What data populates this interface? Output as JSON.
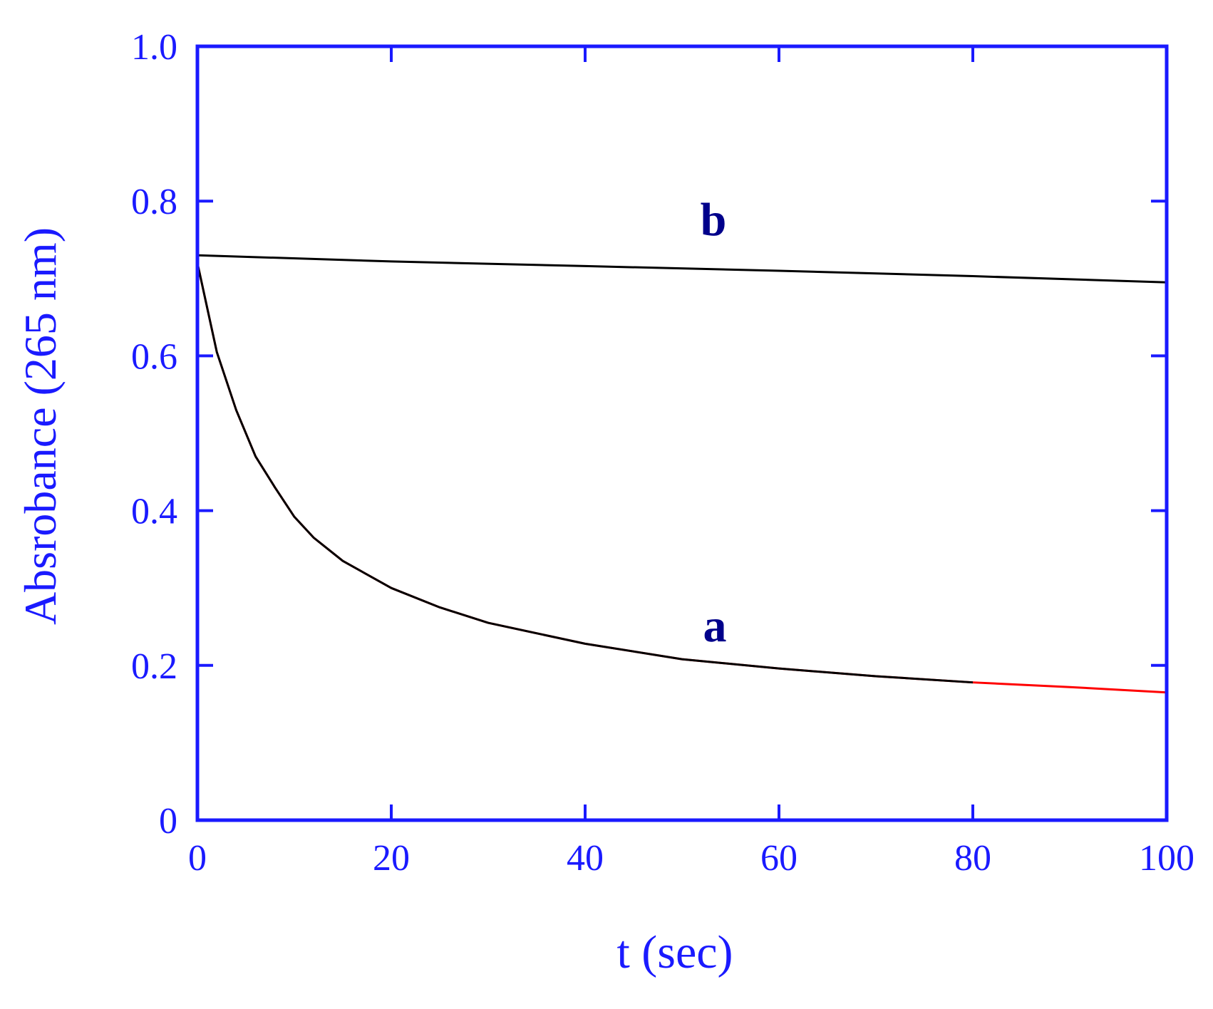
{
  "chart_data": {
    "type": "line",
    "x_label": "t (sec)",
    "y_label": "Absrobance (265 nm)",
    "xlim": [
      0,
      100
    ],
    "xticks": [
      0,
      20,
      40,
      60,
      80,
      100
    ],
    "ylim": [
      0,
      1
    ],
    "yticks": [
      0,
      0.2,
      0.4,
      0.6,
      0.8,
      {
        "value": 1,
        "label": "1.0"
      }
    ],
    "axis_color": "#1a1aff",
    "series": [
      {
        "color": "#ff0000",
        "x": [
          0,
          2,
          4,
          6,
          8,
          10,
          12,
          15,
          20,
          25,
          30,
          40,
          50,
          60,
          70,
          80,
          90,
          100
        ],
        "values": [
          0.72,
          0.605,
          0.53,
          0.47,
          0.43,
          0.392,
          0.365,
          0.335,
          0.3,
          0.275,
          0.255,
          0.228,
          0.208,
          0.196,
          0.186,
          0.178,
          0.172,
          0.165
        ]
      },
      {
        "name": "a",
        "color": "#000000",
        "x": [
          0,
          2,
          4,
          6,
          8,
          10,
          12,
          15,
          20,
          25,
          30,
          40,
          50,
          60,
          70,
          80
        ],
        "values": [
          0.72,
          0.605,
          0.53,
          0.47,
          0.43,
          0.392,
          0.365,
          0.335,
          0.3,
          0.275,
          0.255,
          0.228,
          0.208,
          0.196,
          0.186,
          0.178
        ]
      },
      {
        "name": "b",
        "color": "#000000",
        "x": [
          0,
          20,
          40,
          60,
          80,
          100
        ],
        "values": [
          0.73,
          0.722,
          0.716,
          0.71,
          0.703,
          0.695
        ]
      }
    ]
  }
}
